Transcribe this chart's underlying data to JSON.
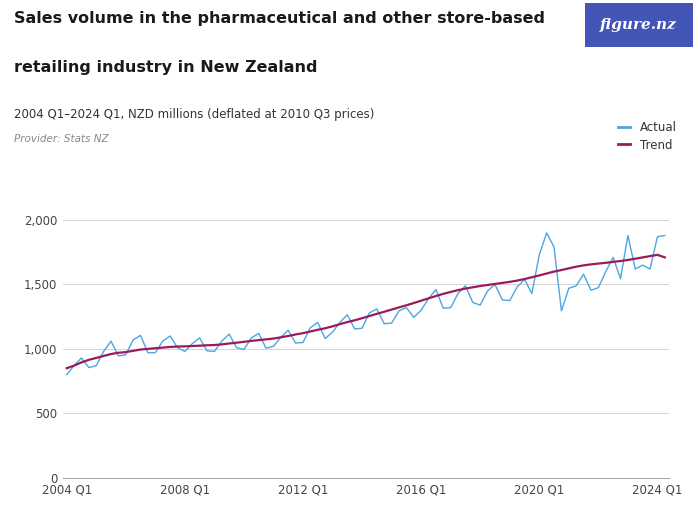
{
  "title_line1": "Sales volume in the pharmaceutical and other store-based",
  "title_line2": "retailing industry in New Zealand",
  "subtitle": "2004 Q1–2024 Q1, NZD millions (deflated at 2010 Q3 prices)",
  "provider": "Provider: Stats NZ",
  "actual_color": "#4DA6E0",
  "trend_color": "#9B1B5A",
  "background_color": "#ffffff",
  "logo_bg_color": "#4355B5",
  "ylim": [
    0,
    2200
  ],
  "yticks": [
    0,
    500,
    1000,
    1500,
    2000
  ],
  "xlabel_ticks": [
    "2004 Q1",
    "2008 Q1",
    "2012 Q1",
    "2016 Q1",
    "2020 Q1",
    "2024 Q1"
  ],
  "actual_values": [
    800,
    870,
    930,
    855,
    870,
    980,
    1060,
    945,
    955,
    1070,
    1105,
    970,
    970,
    1060,
    1100,
    1010,
    980,
    1040,
    1085,
    985,
    980,
    1060,
    1115,
    1010,
    995,
    1085,
    1120,
    1005,
    1020,
    1090,
    1145,
    1045,
    1050,
    1165,
    1205,
    1080,
    1130,
    1205,
    1265,
    1155,
    1160,
    1280,
    1310,
    1195,
    1200,
    1295,
    1320,
    1245,
    1300,
    1390,
    1460,
    1315,
    1320,
    1430,
    1490,
    1360,
    1340,
    1450,
    1500,
    1380,
    1375,
    1480,
    1540,
    1430,
    1730,
    1900,
    1790,
    1295,
    1470,
    1490,
    1580,
    1455,
    1475,
    1600,
    1710,
    1545,
    1880,
    1620,
    1650,
    1620,
    1870,
    1880
  ],
  "trend_values": [
    850,
    870,
    895,
    915,
    930,
    945,
    960,
    970,
    975,
    985,
    995,
    1000,
    1005,
    1010,
    1015,
    1018,
    1020,
    1022,
    1025,
    1028,
    1030,
    1035,
    1042,
    1048,
    1055,
    1062,
    1068,
    1074,
    1080,
    1090,
    1100,
    1112,
    1122,
    1135,
    1148,
    1160,
    1175,
    1192,
    1208,
    1222,
    1238,
    1255,
    1272,
    1288,
    1305,
    1322,
    1338,
    1356,
    1374,
    1392,
    1410,
    1427,
    1442,
    1456,
    1468,
    1478,
    1488,
    1496,
    1504,
    1512,
    1520,
    1530,
    1542,
    1556,
    1570,
    1585,
    1600,
    1612,
    1625,
    1638,
    1648,
    1656,
    1662,
    1668,
    1675,
    1682,
    1690,
    1700,
    1710,
    1720,
    1730,
    1710
  ]
}
